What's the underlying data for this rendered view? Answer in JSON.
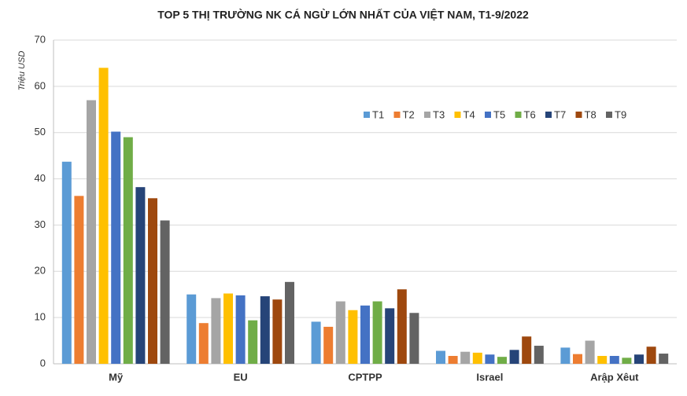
{
  "chart_data": {
    "type": "bar",
    "title": "TOP 5 THỊ TRƯỜNG NK CÁ NGỪ LỚN NHẤT CỦA VIỆT NAM, T1-9/2022",
    "y_label": "Triệu USD",
    "categories": [
      "Mỹ",
      "EU",
      "CPTPP",
      "Israel",
      "Arập Xêut"
    ],
    "series": [
      {
        "name": "T1",
        "color": "#5b9bd5",
        "values": [
          43.7,
          15.0,
          9.1,
          2.8,
          3.5
        ]
      },
      {
        "name": "T2",
        "color": "#ed7d31",
        "values": [
          36.3,
          8.8,
          8.0,
          1.7,
          2.1
        ]
      },
      {
        "name": "T3",
        "color": "#a5a5a5",
        "values": [
          57.0,
          14.2,
          13.5,
          2.6,
          5.0
        ]
      },
      {
        "name": "T4",
        "color": "#ffc000",
        "values": [
          64.0,
          15.2,
          11.6,
          2.4,
          1.7
        ]
      },
      {
        "name": "T5",
        "color": "#4472c4",
        "values": [
          50.2,
          14.8,
          12.6,
          2.0,
          1.7
        ]
      },
      {
        "name": "T6",
        "color": "#70ad47",
        "values": [
          49.0,
          9.4,
          13.5,
          1.5,
          1.3
        ]
      },
      {
        "name": "T7",
        "color": "#264478",
        "values": [
          38.2,
          14.6,
          12.0,
          3.0,
          2.0
        ]
      },
      {
        "name": "T8",
        "color": "#9e480e",
        "values": [
          35.8,
          13.9,
          16.1,
          5.9,
          3.7
        ]
      },
      {
        "name": "T9",
        "color": "#636363",
        "values": [
          31.0,
          17.7,
          11.0,
          3.9,
          2.2
        ]
      }
    ],
    "ylim": [
      0,
      70
    ],
    "yticks": [
      0,
      10,
      20,
      30,
      40,
      50,
      60,
      70
    ],
    "grid": true,
    "legend": "upper right"
  }
}
